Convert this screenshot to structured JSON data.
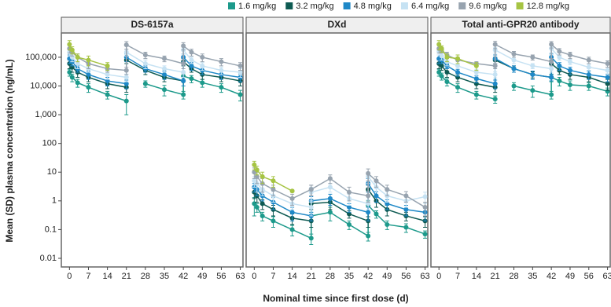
{
  "chart_data": {
    "type": "line",
    "log_scale": true,
    "ylabel": "Mean (SD) plasma concentration (ng/mL)",
    "xlabel": "Nominal time since first dose (d)",
    "x": [
      0,
      1,
      3,
      7,
      14,
      21,
      21,
      28,
      35,
      42,
      42,
      45,
      49,
      56,
      63
    ],
    "xlim": [
      -3,
      64
    ],
    "xticks": [
      0,
      7,
      14,
      21,
      28,
      35,
      42,
      49,
      56,
      63
    ],
    "ylim": [
      0.005,
      700000
    ],
    "yticks": [
      0.01,
      0.1,
      1,
      10,
      100,
      {
        "value": 1000,
        "label": "1,000"
      },
      {
        "value": 10000,
        "label": "10,000"
      },
      {
        "value": 100000,
        "label": "100,000"
      }
    ],
    "series": [
      {
        "name": "1.6 mg/kg",
        "color": "#1d9a8b"
      },
      {
        "name": "3.2 mg/kg",
        "color": "#0e5a52"
      },
      {
        "name": "4.8 mg/kg",
        "color": "#1e88c7"
      },
      {
        "name": "6.4 mg/kg",
        "color": "#c6e2f3"
      },
      {
        "name": "9.6 mg/kg",
        "color": "#97a3af"
      },
      {
        "name": "12.8 mg/kg",
        "color": "#a6c443"
      }
    ],
    "panels": [
      {
        "title": "DS-6157a",
        "series": [
          {
            "values": [
              30000,
              20000,
              13000,
              9000,
              5000,
              3000,
              null,
              12000,
              7500,
              5000,
              22000,
              18000,
              13000,
              9000,
              5000
            ],
            "errors": [
              8000,
              6000,
              4000,
              3000,
              1500,
              2000,
              null,
              3000,
              3000,
              1500,
              6000,
              5000,
              4000,
              3000,
              2000
            ]
          },
          {
            "values": [
              60000,
              45000,
              30000,
              20000,
              12000,
              9000,
              80000,
              35000,
              20000,
              15000,
              70000,
              40000,
              25000,
              20000,
              15000
            ],
            "errors": [
              20000,
              15000,
              10000,
              6000,
              4000,
              3000,
              20000,
              10000,
              6000,
              5000,
              20000,
              10000,
              8000,
              6000,
              5000
            ]
          },
          {
            "values": [
              90000,
              70000,
              40000,
              25000,
              15000,
              12000,
              100000,
              40000,
              25000,
              15000,
              100000,
              50000,
              35000,
              25000,
              20000
            ],
            "errors": [
              30000,
              20000,
              10000,
              8000,
              5000,
              4000,
              30000,
              10000,
              8000,
              5000,
              30000,
              15000,
              10000,
              8000,
              6000
            ]
          },
          {
            "values": [
              150000,
              100000,
              60000,
              40000,
              25000,
              20000,
              150000,
              60000,
              40000,
              30000,
              180000,
              80000,
              50000,
              35000,
              30000
            ],
            "errors": [
              40000,
              30000,
              20000,
              10000,
              8000,
              6000,
              40000,
              20000,
              10000,
              10000,
              50000,
              20000,
              15000,
              10000,
              10000
            ]
          },
          {
            "values": [
              200000,
              150000,
              100000,
              60000,
              40000,
              35000,
              270000,
              120000,
              90000,
              60000,
              250000,
              150000,
              100000,
              70000,
              50000
            ],
            "errors": [
              60000,
              40000,
              30000,
              20000,
              10000,
              10000,
              80000,
              30000,
              20000,
              20000,
              70000,
              40000,
              30000,
              20000,
              15000
            ]
          },
          {
            "values": [
              280000,
              180000,
              100000,
              80000,
              50000,
              null,
              null,
              null,
              null,
              null,
              null,
              null,
              null,
              null,
              null
            ],
            "errors": [
              100000,
              50000,
              30000,
              30000,
              15000,
              null,
              null,
              null,
              null,
              null,
              null,
              null,
              null,
              null,
              null
            ]
          }
        ]
      },
      {
        "title": "DXd",
        "series": [
          {
            "values": [
              0.8,
              0.6,
              0.3,
              0.2,
              0.1,
              0.05,
              0.3,
              0.4,
              0.15,
              0.06,
              0.7,
              0.35,
              0.15,
              0.12,
              0.07
            ],
            "errors": [
              0.5,
              0.2,
              0.1,
              0.08,
              0.04,
              0.02,
              0.1,
              0.2,
              0.05,
              0.02,
              0.3,
              0.1,
              0.05,
              0.04,
              0.02
            ]
          },
          {
            "values": [
              2,
              1.5,
              0.8,
              0.5,
              0.25,
              0.2,
              0.8,
              0.9,
              0.35,
              0.2,
              2.5,
              1,
              0.5,
              0.3,
              0.2
            ],
            "errors": [
              0.8,
              0.6,
              0.3,
              0.2,
              0.1,
              0.08,
              0.3,
              0.4,
              0.1,
              0.08,
              1,
              0.4,
              0.2,
              0.1,
              0.08
            ]
          },
          {
            "values": [
              3,
              2.5,
              1.5,
              0.9,
              0.4,
              0.3,
              1,
              1.2,
              0.6,
              0.4,
              4,
              1.5,
              0.8,
              0.5,
              0.4
            ],
            "errors": [
              1,
              1,
              0.5,
              0.4,
              0.2,
              0.1,
              0.4,
              0.5,
              0.2,
              0.2,
              2,
              0.6,
              0.3,
              0.2,
              0.2
            ]
          },
          {
            "values": [
              5,
              4,
              2.5,
              1.5,
              0.8,
              0.6,
              2,
              3,
              1.2,
              0.8,
              7,
              3,
              1.5,
              1,
              1.4
            ],
            "errors": [
              2,
              2,
              1,
              0.6,
              0.3,
              0.3,
              1,
              1,
              0.5,
              0.3,
              3,
              1,
              0.6,
              0.4,
              0.6
            ]
          },
          {
            "values": [
              10,
              7,
              4,
              2.5,
              1.2,
              2.5,
              2.5,
              6,
              2,
              1.5,
              9,
              5,
              2.5,
              1.5,
              0.6
            ],
            "errors": [
              4,
              3,
              2,
              1,
              0.5,
              1,
              1,
              2,
              1,
              0.6,
              4,
              2,
              1,
              0.6,
              0.3
            ]
          },
          {
            "values": [
              18,
              12,
              7,
              5,
              2.2,
              null,
              null,
              null,
              null,
              null,
              null,
              null,
              null,
              null,
              null
            ],
            "errors": [
              6,
              4,
              3,
              2,
              0.2,
              null,
              null,
              null,
              null,
              null,
              null,
              null,
              null,
              null,
              null
            ]
          }
        ]
      },
      {
        "title": "Total anti-GPR20 antibody",
        "series": [
          {
            "values": [
              30000,
              22000,
              14000,
              9000,
              5000,
              3500,
              null,
              10000,
              7000,
              5000,
              20000,
              15000,
              11000,
              10000,
              6500
            ],
            "errors": [
              8000,
              6000,
              4000,
              3000,
              1500,
              1000,
              null,
              3000,
              3000,
              1500,
              6000,
              5000,
              4000,
              3000,
              2000
            ]
          },
          {
            "values": [
              60000,
              50000,
              30000,
              20000,
              12000,
              9000,
              80000,
              40000,
              25000,
              20000,
              60000,
              35000,
              25000,
              20000,
              12000
            ],
            "errors": [
              20000,
              15000,
              10000,
              6000,
              4000,
              3000,
              20000,
              10000,
              6000,
              5000,
              20000,
              10000,
              8000,
              6000,
              5000
            ]
          },
          {
            "values": [
              90000,
              80000,
              50000,
              30000,
              18000,
              12000,
              90000,
              40000,
              25000,
              20000,
              100000,
              50000,
              35000,
              25000,
              20000
            ],
            "errors": [
              30000,
              20000,
              10000,
              8000,
              5000,
              4000,
              30000,
              10000,
              8000,
              5000,
              30000,
              15000,
              10000,
              8000,
              6000
            ]
          },
          {
            "values": [
              160000,
              110000,
              70000,
              50000,
              30000,
              25000,
              180000,
              80000,
              50000,
              40000,
              200000,
              100000,
              70000,
              45000,
              35000
            ],
            "errors": [
              40000,
              30000,
              20000,
              10000,
              8000,
              6000,
              40000,
              20000,
              10000,
              10000,
              50000,
              20000,
              15000,
              10000,
              10000
            ]
          },
          {
            "values": [
              200000,
              180000,
              120000,
              80000,
              60000,
              50000,
              280000,
              130000,
              100000,
              70000,
              280000,
              160000,
              120000,
              80000,
              60000
            ],
            "errors": [
              60000,
              40000,
              30000,
              20000,
              10000,
              10000,
              80000,
              30000,
              20000,
              20000,
              70000,
              40000,
              30000,
              20000,
              15000
            ]
          },
          {
            "values": [
              280000,
              200000,
              100000,
              90000,
              50000,
              null,
              null,
              null,
              null,
              null,
              null,
              null,
              null,
              null,
              null
            ],
            "errors": [
              100000,
              50000,
              30000,
              30000,
              15000,
              null,
              null,
              null,
              null,
              null,
              null,
              null,
              null,
              null,
              null
            ]
          }
        ]
      }
    ]
  }
}
